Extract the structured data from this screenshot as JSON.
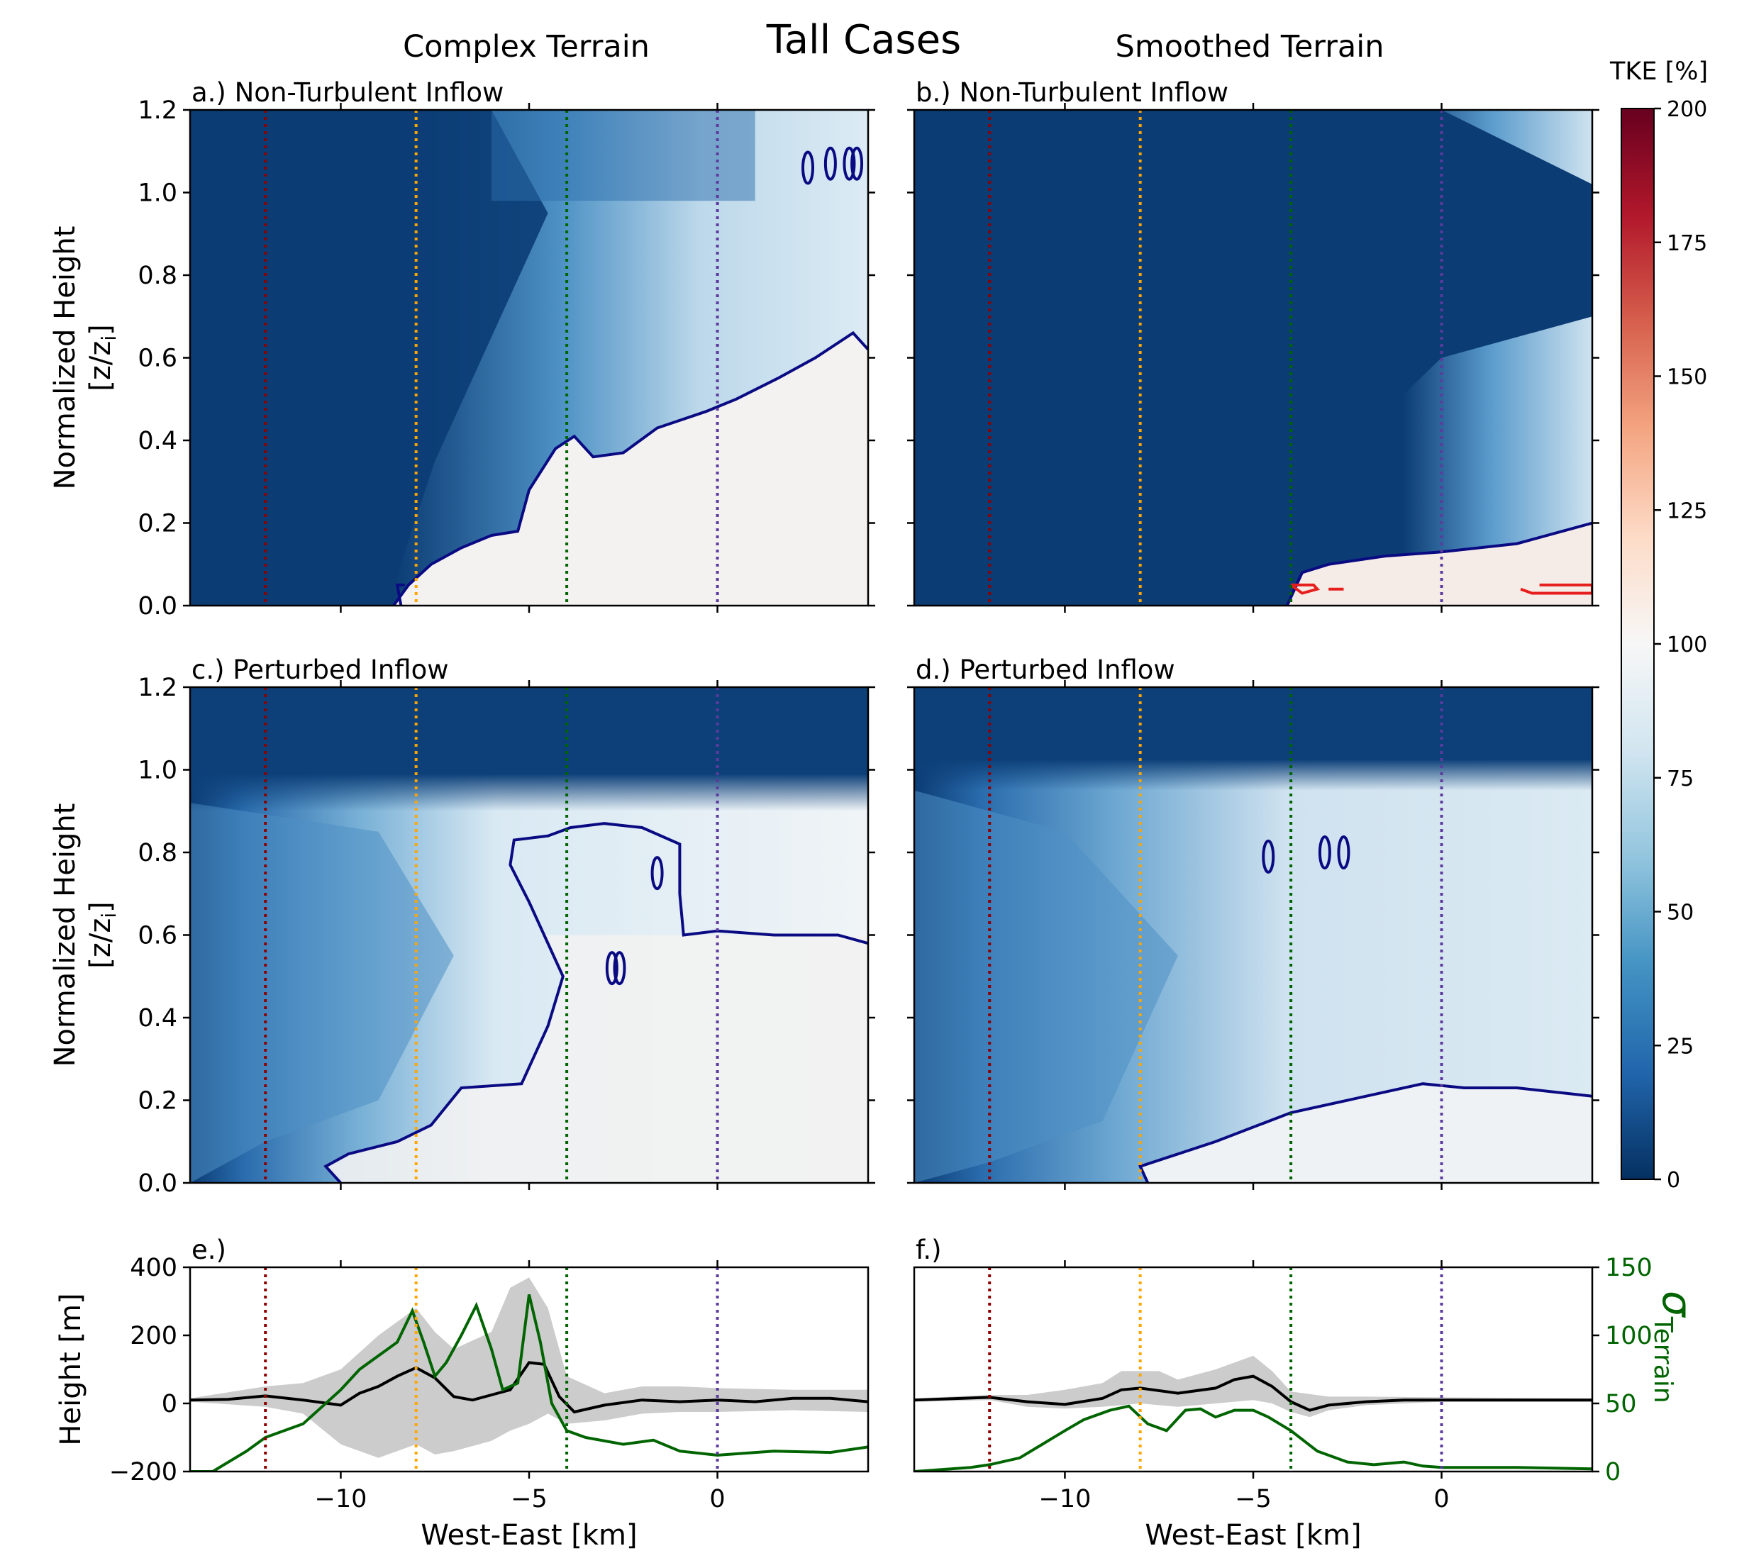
{
  "title": "Tall Cases",
  "column_titles": [
    "Complex Terrain",
    "Smoothed Terrain"
  ],
  "colorbar": {
    "title": "TKE [%]",
    "ticks": [
      0,
      25,
      50,
      75,
      100,
      125,
      150,
      175,
      200
    ],
    "tick_labels": [
      "0",
      "25",
      "50",
      "75",
      "100",
      "125",
      "150",
      "175",
      "200"
    ],
    "colormap": "RdBu_r",
    "range": [
      0,
      200
    ]
  },
  "colors": {
    "blue_contour": "#0a0a82",
    "red_contour": "#e61e1e",
    "line_m12": "#8b0000",
    "line_m8": "#ffa500",
    "line_m4": "#006400",
    "line_0": "#5c3a9e",
    "terrain_line": "#000000",
    "terrain_band": "#cccccc",
    "sigma_line": "#006400"
  },
  "chart_data": [
    {
      "id": "a",
      "type": "heatmap",
      "label": "a.) Non-Turbulent Inflow",
      "ylabel": "Normalized Height",
      "ylabel2": "[z/z",
      "ylabel2_sub": "i",
      "ylabel2_end": "]",
      "xlim": [
        -14,
        4
      ],
      "ylim": [
        0,
        1.2
      ],
      "yticks": [
        0,
        0.2,
        0.4,
        0.6,
        0.8,
        1.0,
        1.2
      ],
      "ytick_labels": [
        "0.0",
        "0.2",
        "0.4",
        "0.6",
        "0.8",
        "1.0",
        "1.2"
      ],
      "xticks": [
        -10,
        -5,
        0
      ],
      "vlines_x": [
        -12,
        -8,
        -4,
        0
      ],
      "blue_contour": [
        [
          -8.6,
          0.0
        ],
        [
          -8.2,
          0.05
        ],
        [
          -7.6,
          0.1
        ],
        [
          -6.8,
          0.14
        ],
        [
          -6.0,
          0.17
        ],
        [
          -5.3,
          0.18
        ],
        [
          -5.0,
          0.28
        ],
        [
          -4.3,
          0.38
        ],
        [
          -3.8,
          0.41
        ],
        [
          -3.3,
          0.36
        ],
        [
          -2.5,
          0.37
        ],
        [
          -1.6,
          0.43
        ],
        [
          -0.3,
          0.47
        ],
        [
          0.5,
          0.5
        ],
        [
          1.6,
          0.55
        ],
        [
          2.6,
          0.6
        ],
        [
          3.6,
          0.66
        ],
        [
          4.0,
          0.62
        ]
      ],
      "blue_contour_2": [
        [
          -8.4,
          0.0
        ],
        [
          -8.5,
          0.05
        ],
        [
          -8.3,
          0.05
        ]
      ],
      "small_blue_blobs": [
        [
          2.4,
          1.06
        ],
        [
          3.0,
          1.07
        ],
        [
          3.5,
          1.07
        ],
        [
          3.7,
          1.07
        ]
      ],
      "red_contours": []
    },
    {
      "id": "b",
      "type": "heatmap",
      "label": "b.) Non-Turbulent Inflow",
      "xlim": [
        -14,
        4
      ],
      "ylim": [
        0,
        1.2
      ],
      "yticks": [
        0,
        0.2,
        0.4,
        0.6,
        0.8,
        1.0,
        1.2
      ],
      "xticks": [
        -10,
        -5,
        0
      ],
      "vlines_x": [
        -12,
        -8,
        -4,
        0
      ],
      "blue_contour": [
        [
          -4.1,
          0.0
        ],
        [
          -3.7,
          0.08
        ],
        [
          -3.0,
          0.1
        ],
        [
          -1.5,
          0.12
        ],
        [
          0.0,
          0.13
        ],
        [
          2.0,
          0.15
        ],
        [
          4.0,
          0.2
        ]
      ],
      "small_blue_blobs": [],
      "red_contours": [
        [
          [
            -4.0,
            0.05
          ],
          [
            -3.4,
            0.05
          ],
          [
            -3.3,
            0.04
          ],
          [
            -3.7,
            0.03
          ],
          [
            -4.0,
            0.05
          ]
        ],
        [
          [
            -3.0,
            0.04
          ],
          [
            -2.6,
            0.04
          ]
        ],
        [
          [
            2.1,
            0.04
          ],
          [
            2.4,
            0.03
          ],
          [
            4.0,
            0.03
          ],
          [
            4.0,
            0.05
          ],
          [
            2.6,
            0.05
          ]
        ]
      ]
    },
    {
      "id": "c",
      "type": "heatmap",
      "label": "c.) Perturbed Inflow",
      "ylabel": "Normalized Height",
      "ylabel2": "[z/z",
      "ylabel2_sub": "i",
      "ylabel2_end": "]",
      "xlim": [
        -14,
        4
      ],
      "ylim": [
        0,
        1.2
      ],
      "yticks": [
        0,
        0.2,
        0.4,
        0.6,
        0.8,
        1.0,
        1.2
      ],
      "ytick_labels": [
        "0.0",
        "0.2",
        "0.4",
        "0.6",
        "0.8",
        "1.0",
        "1.2"
      ],
      "xticks": [
        -10,
        -5,
        0
      ],
      "vlines_x": [
        -12,
        -8,
        -4,
        0
      ],
      "blue_contour": [
        [
          -10.0,
          0.0
        ],
        [
          -10.4,
          0.04
        ],
        [
          -9.8,
          0.07
        ],
        [
          -8.5,
          0.1
        ],
        [
          -7.6,
          0.14
        ],
        [
          -6.8,
          0.23
        ],
        [
          -5.2,
          0.24
        ],
        [
          -4.5,
          0.38
        ],
        [
          -4.1,
          0.5
        ],
        [
          -4.6,
          0.6
        ],
        [
          -5.0,
          0.68
        ],
        [
          -5.5,
          0.77
        ],
        [
          -5.4,
          0.83
        ],
        [
          -4.5,
          0.84
        ],
        [
          -3.9,
          0.86
        ],
        [
          -3.0,
          0.87
        ],
        [
          -2.0,
          0.86
        ],
        [
          -1.0,
          0.82
        ],
        [
          -1.0,
          0.7
        ],
        [
          -0.9,
          0.6
        ],
        [
          0.0,
          0.61
        ],
        [
          1.5,
          0.6
        ],
        [
          3.2,
          0.6
        ],
        [
          4.0,
          0.58
        ]
      ],
      "small_blue_blobs": [
        [
          -2.8,
          0.52
        ],
        [
          -2.6,
          0.52
        ],
        [
          -1.6,
          0.75
        ]
      ],
      "red_contours": []
    },
    {
      "id": "d",
      "type": "heatmap",
      "label": "d.) Perturbed Inflow",
      "xlim": [
        -14,
        4
      ],
      "ylim": [
        0,
        1.2
      ],
      "yticks": [
        0,
        0.2,
        0.4,
        0.6,
        0.8,
        1.0,
        1.2
      ],
      "xticks": [
        -10,
        -5,
        0
      ],
      "vlines_x": [
        -12,
        -8,
        -4,
        0
      ],
      "blue_contour": [
        [
          -7.8,
          0.0
        ],
        [
          -8.0,
          0.04
        ],
        [
          -6.0,
          0.1
        ],
        [
          -4.0,
          0.17
        ],
        [
          -2.0,
          0.21
        ],
        [
          -0.5,
          0.24
        ],
        [
          0.6,
          0.23
        ],
        [
          2.0,
          0.23
        ],
        [
          4.0,
          0.21
        ]
      ],
      "small_blue_blobs": [
        [
          -4.6,
          0.79
        ],
        [
          -3.1,
          0.8
        ],
        [
          -2.6,
          0.8
        ]
      ],
      "red_contours": []
    },
    {
      "id": "e",
      "type": "line",
      "label": "e.)",
      "ylabel": "Height [m]",
      "xlabel": "West-East [km]",
      "xlim": [
        -14,
        4
      ],
      "ylim": [
        -200,
        400
      ],
      "yticks": [
        -200,
        0,
        200,
        400
      ],
      "ytick_labels": [
        "−200",
        "0",
        "200",
        "400"
      ],
      "xticks": [
        -10,
        -5,
        0
      ],
      "xtick_labels": [
        "−10",
        "−5",
        "0"
      ],
      "vlines_x": [
        -12,
        -8,
        -4,
        0
      ],
      "terrain_mean": [
        [
          -14,
          10
        ],
        [
          -13,
          12
        ],
        [
          -12,
          22
        ],
        [
          -11,
          10
        ],
        [
          -10,
          -5
        ],
        [
          -9.5,
          30
        ],
        [
          -9,
          50
        ],
        [
          -8.5,
          80
        ],
        [
          -8,
          105
        ],
        [
          -7.5,
          75
        ],
        [
          -7,
          20
        ],
        [
          -6.5,
          10
        ],
        [
          -6,
          25
        ],
        [
          -5.5,
          40
        ],
        [
          -5,
          120
        ],
        [
          -4.6,
          115
        ],
        [
          -4.2,
          20
        ],
        [
          -3.8,
          -25
        ],
        [
          -3,
          -5
        ],
        [
          -2,
          10
        ],
        [
          -1,
          5
        ],
        [
          0,
          10
        ],
        [
          1,
          5
        ],
        [
          2,
          15
        ],
        [
          3,
          15
        ],
        [
          4,
          5
        ]
      ],
      "terrain_upper": [
        [
          -14,
          15
        ],
        [
          -12,
          50
        ],
        [
          -11,
          60
        ],
        [
          -10,
          100
        ],
        [
          -9,
          200
        ],
        [
          -8,
          280
        ],
        [
          -7.5,
          210
        ],
        [
          -7,
          160
        ],
        [
          -6,
          210
        ],
        [
          -5.5,
          340
        ],
        [
          -5,
          370
        ],
        [
          -4.5,
          280
        ],
        [
          -4,
          80
        ],
        [
          -3,
          30
        ],
        [
          -2,
          50
        ],
        [
          -1,
          50
        ],
        [
          0,
          45
        ],
        [
          2,
          40
        ],
        [
          4,
          40
        ]
      ],
      "terrain_lower": [
        [
          -14,
          5
        ],
        [
          -12,
          -10
        ],
        [
          -11,
          -30
        ],
        [
          -10,
          -120
        ],
        [
          -9,
          -160
        ],
        [
          -8,
          -120
        ],
        [
          -7.5,
          -150
        ],
        [
          -7,
          -140
        ],
        [
          -6,
          -110
        ],
        [
          -5.5,
          -80
        ],
        [
          -5,
          -60
        ],
        [
          -4.5,
          -30
        ],
        [
          -4,
          -60
        ],
        [
          -3,
          -50
        ],
        [
          -2,
          -30
        ],
        [
          -1,
          -25
        ],
        [
          0,
          -25
        ],
        [
          2,
          -20
        ],
        [
          4,
          -25
        ]
      ],
      "sigma_terrain": [
        [
          -14,
          0
        ],
        [
          -13.4,
          0
        ],
        [
          -12.5,
          15
        ],
        [
          -12,
          25
        ],
        [
          -11,
          35
        ],
        [
          -10,
          60
        ],
        [
          -9.5,
          75
        ],
        [
          -9,
          85
        ],
        [
          -8.5,
          95
        ],
        [
          -8.1,
          118
        ],
        [
          -7.8,
          95
        ],
        [
          -7.5,
          70
        ],
        [
          -7.2,
          80
        ],
        [
          -6.8,
          100
        ],
        [
          -6.4,
          122
        ],
        [
          -6,
          90
        ],
        [
          -5.7,
          60
        ],
        [
          -5.3,
          65
        ],
        [
          -5.0,
          130
        ],
        [
          -4.7,
          95
        ],
        [
          -4.4,
          50
        ],
        [
          -4.0,
          30
        ],
        [
          -3.5,
          25
        ],
        [
          -2.5,
          20
        ],
        [
          -1.7,
          23
        ],
        [
          -1.0,
          15
        ],
        [
          0,
          12
        ],
        [
          1.5,
          15
        ],
        [
          3,
          14
        ],
        [
          4,
          18
        ]
      ],
      "sigma_ylim": [
        0,
        150
      ]
    },
    {
      "id": "f",
      "type": "line",
      "label": "f.)",
      "xlabel": "West-East [km]",
      "xlim": [
        -14,
        4
      ],
      "ylim": [
        -200,
        400
      ],
      "xticks": [
        -10,
        -5,
        0
      ],
      "xtick_labels": [
        "−10",
        "−5",
        "0"
      ],
      "vlines_x": [
        -12,
        -8,
        -4,
        0
      ],
      "terrain_mean": [
        [
          -14,
          10
        ],
        [
          -12,
          18
        ],
        [
          -11,
          5
        ],
        [
          -10,
          -3
        ],
        [
          -9,
          15
        ],
        [
          -8.5,
          40
        ],
        [
          -8,
          45
        ],
        [
          -7,
          30
        ],
        [
          -6,
          45
        ],
        [
          -5.5,
          70
        ],
        [
          -5,
          80
        ],
        [
          -4.5,
          50
        ],
        [
          -4,
          5
        ],
        [
          -3.5,
          -20
        ],
        [
          -3,
          -5
        ],
        [
          -2,
          5
        ],
        [
          -1,
          10
        ],
        [
          0,
          10
        ],
        [
          2,
          10
        ],
        [
          4,
          10
        ]
      ],
      "terrain_upper": [
        [
          -14,
          15
        ],
        [
          -12,
          25
        ],
        [
          -11,
          25
        ],
        [
          -10,
          40
        ],
        [
          -9,
          60
        ],
        [
          -8.5,
          95
        ],
        [
          -7.5,
          95
        ],
        [
          -7,
          70
        ],
        [
          -6,
          100
        ],
        [
          -5,
          140
        ],
        [
          -4.5,
          95
        ],
        [
          -4,
          35
        ],
        [
          -3,
          20
        ],
        [
          -2,
          20
        ],
        [
          0,
          18
        ],
        [
          4,
          15
        ]
      ],
      "terrain_lower": [
        [
          -14,
          5
        ],
        [
          -12,
          10
        ],
        [
          -11,
          -10
        ],
        [
          -10,
          -15
        ],
        [
          -9,
          -10
        ],
        [
          -8,
          0
        ],
        [
          -7,
          -10
        ],
        [
          -6,
          0
        ],
        [
          -5,
          10
        ],
        [
          -4.5,
          0
        ],
        [
          -4,
          -25
        ],
        [
          -3.5,
          -40
        ],
        [
          -3,
          -20
        ],
        [
          -2,
          -5
        ],
        [
          0,
          5
        ],
        [
          4,
          5
        ]
      ],
      "sigma_terrain": [
        [
          -14,
          0
        ],
        [
          -12.5,
          3
        ],
        [
          -12,
          5
        ],
        [
          -11.2,
          10
        ],
        [
          -10.6,
          20
        ],
        [
          -10,
          30
        ],
        [
          -9.5,
          38
        ],
        [
          -8.8,
          45
        ],
        [
          -8.3,
          48
        ],
        [
          -7.8,
          35
        ],
        [
          -7.3,
          30
        ],
        [
          -6.8,
          45
        ],
        [
          -6.4,
          46
        ],
        [
          -6.0,
          40
        ],
        [
          -5.5,
          45
        ],
        [
          -5.0,
          45
        ],
        [
          -4.6,
          40
        ],
        [
          -4.0,
          30
        ],
        [
          -3.3,
          15
        ],
        [
          -2.5,
          7
        ],
        [
          -1.8,
          5
        ],
        [
          -1.0,
          7
        ],
        [
          -0.5,
          4
        ],
        [
          0,
          3
        ],
        [
          2,
          3
        ],
        [
          4,
          2
        ]
      ],
      "sigma_ylim": [
        0,
        150
      ],
      "sigma_ylabel": "σ",
      "sigma_ylabel_sub": "Terrain",
      "sigma_yticks": [
        0,
        50,
        100,
        150
      ],
      "sigma_ytick_labels": [
        "0",
        "50",
        "100",
        "150"
      ]
    }
  ]
}
